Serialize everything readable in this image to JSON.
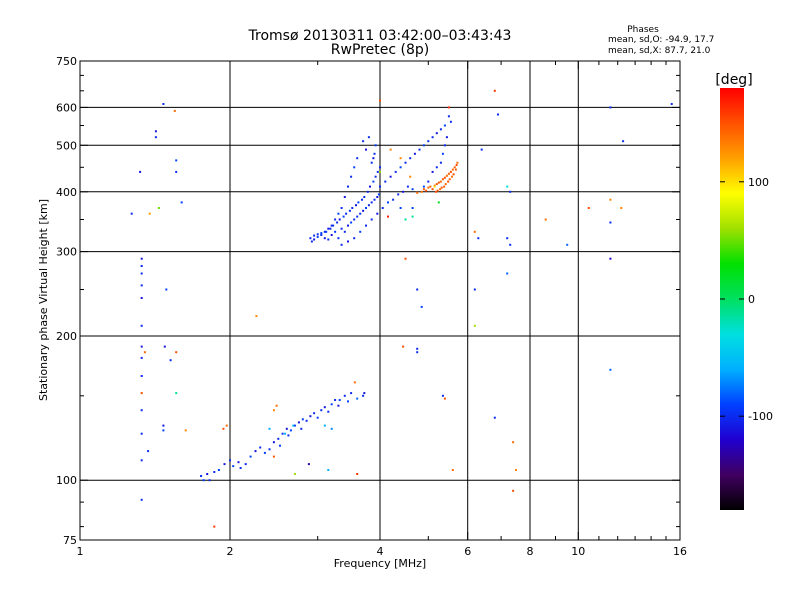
{
  "chart_data": {
    "type": "scatter",
    "title": "Tromsø 20130311 03:42:00–03:43:43",
    "subtitle": "RwPretec (8p)",
    "xlabel": "Frequency [MHz]",
    "ylabel": "Stationary phase Virtual Height [km]",
    "x_scale": "log",
    "y_scale": "log",
    "xlim": [
      1,
      16
    ],
    "ylim": [
      75,
      750
    ],
    "x_ticks": [
      1,
      2,
      4,
      6,
      8,
      10,
      16
    ],
    "x_gridlines": [
      2,
      4,
      6,
      8,
      10
    ],
    "y_ticks": [
      75,
      100,
      200,
      300,
      400,
      500,
      600,
      750
    ],
    "y_gridlines": [
      100,
      200,
      300,
      400,
      500,
      600
    ],
    "grid": true,
    "info": {
      "heading": "Phases",
      "line1": "mean, sd,O: -94.9, 17.7",
      "line2": "mean, sd,X:  87.7, 21.0"
    },
    "colorbar": {
      "label": "[deg]",
      "range": [
        -180,
        180
      ],
      "ticks": [
        -100,
        0,
        100
      ],
      "colormap": [
        "#000000",
        "#400060",
        "#2000d0",
        "#0040ff",
        "#00b0ff",
        "#00e0e0",
        "#00e060",
        "#00e000",
        "#a0e000",
        "#ffff00",
        "#ffa000",
        "#ff5000",
        "#ff0000"
      ]
    },
    "points": [
      [
        1.27,
        360,
        -100
      ],
      [
        1.38,
        360,
        120
      ],
      [
        1.44,
        370,
        50
      ],
      [
        1.6,
        380,
        -90
      ],
      [
        1.47,
        610,
        -100
      ],
      [
        1.55,
        590,
        140
      ],
      [
        1.42,
        535,
        -110
      ],
      [
        1.42,
        520,
        -100
      ],
      [
        1.56,
        465,
        -90
      ],
      [
        1.56,
        440,
        -100
      ],
      [
        1.32,
        440,
        -110
      ],
      [
        1.33,
        290,
        -110
      ],
      [
        1.33,
        280,
        -100
      ],
      [
        1.33,
        270,
        -100
      ],
      [
        1.33,
        255,
        -100
      ],
      [
        1.33,
        240,
        -110
      ],
      [
        1.33,
        210,
        -100
      ],
      [
        1.33,
        190,
        -110
      ],
      [
        1.33,
        180,
        -100
      ],
      [
        1.33,
        165,
        -100
      ],
      [
        1.33,
        152,
        150
      ],
      [
        1.33,
        140,
        -100
      ],
      [
        1.33,
        125,
        -100
      ],
      [
        1.33,
        110,
        -100
      ],
      [
        1.33,
        91,
        -100
      ],
      [
        1.35,
        185,
        140
      ],
      [
        1.49,
        250,
        -90
      ],
      [
        1.48,
        190,
        -110
      ],
      [
        1.52,
        178,
        -100
      ],
      [
        1.56,
        185,
        150
      ],
      [
        1.56,
        152,
        -10
      ],
      [
        1.63,
        127,
        130
      ],
      [
        1.47,
        130,
        -110
      ],
      [
        1.47,
        127,
        -90
      ],
      [
        1.37,
        115,
        -100
      ],
      [
        2.26,
        220,
        130
      ],
      [
        1.97,
        130,
        140
      ],
      [
        1.94,
        128,
        150
      ],
      [
        1.86,
        80,
        160
      ],
      [
        2.45,
        140,
        130
      ],
      [
        2.48,
        143,
        140
      ],
      [
        2.45,
        112,
        150
      ],
      [
        2.7,
        103,
        60
      ],
      [
        2.88,
        108,
        -130
      ],
      [
        3.15,
        105,
        -60
      ],
      [
        3.56,
        160,
        140
      ],
      [
        3.6,
        103,
        160
      ],
      [
        3.32,
        147,
        -90
      ],
      [
        3.6,
        148,
        -80
      ],
      [
        1.75,
        102,
        -100
      ],
      [
        1.77,
        100,
        -90
      ],
      [
        1.8,
        103,
        -110
      ],
      [
        1.82,
        100,
        -100
      ],
      [
        1.86,
        104,
        -100
      ],
      [
        1.9,
        105,
        -90
      ],
      [
        1.95,
        108,
        -110
      ],
      [
        2.0,
        110,
        -100
      ],
      [
        2.03,
        107,
        -90
      ],
      [
        2.08,
        109,
        -110
      ],
      [
        2.1,
        106,
        -100
      ],
      [
        2.15,
        108,
        -100
      ],
      [
        2.2,
        112,
        -90
      ],
      [
        2.25,
        115,
        -110
      ],
      [
        2.3,
        117,
        -100
      ],
      [
        2.35,
        114,
        -90
      ],
      [
        2.4,
        116,
        -100
      ],
      [
        2.45,
        120,
        -110
      ],
      [
        2.5,
        122,
        -100
      ],
      [
        2.52,
        118,
        -90
      ],
      [
        2.55,
        125,
        -100
      ],
      [
        2.6,
        128,
        -110
      ],
      [
        2.62,
        124,
        -100
      ],
      [
        2.65,
        127,
        -90
      ],
      [
        2.7,
        130,
        -100
      ],
      [
        2.75,
        132,
        -110
      ],
      [
        2.78,
        128,
        -100
      ],
      [
        2.8,
        134,
        -90
      ],
      [
        2.85,
        133,
        -100
      ],
      [
        2.9,
        136,
        -110
      ],
      [
        2.95,
        138,
        -100
      ],
      [
        3.0,
        135,
        -90
      ],
      [
        3.05,
        140,
        -100
      ],
      [
        3.1,
        142,
        -110
      ],
      [
        3.15,
        139,
        -100
      ],
      [
        3.2,
        144,
        -90
      ],
      [
        3.25,
        147,
        -100
      ],
      [
        3.3,
        143,
        -110
      ],
      [
        3.4,
        150,
        -100
      ],
      [
        3.45,
        146,
        -90
      ],
      [
        3.5,
        152,
        -100
      ],
      [
        3.7,
        150,
        -100
      ],
      [
        3.72,
        152,
        -110
      ],
      [
        2.58,
        125,
        -60
      ],
      [
        2.68,
        130,
        -60
      ],
      [
        3.1,
        130,
        -60
      ],
      [
        3.2,
        128,
        -70
      ],
      [
        2.4,
        128,
        -60
      ],
      [
        2.9,
        320,
        -100
      ],
      [
        2.95,
        318,
        -110
      ],
      [
        3.0,
        322,
        -90
      ],
      [
        2.92,
        315,
        -100
      ],
      [
        3.05,
        325,
        -100
      ],
      [
        3.1,
        320,
        -110
      ],
      [
        3.12,
        330,
        -90
      ],
      [
        3.15,
        318,
        -100
      ],
      [
        3.18,
        335,
        -100
      ],
      [
        3.2,
        325,
        -110
      ],
      [
        3.22,
        340,
        -100
      ],
      [
        3.25,
        330,
        -90
      ],
      [
        3.28,
        345,
        -100
      ],
      [
        3.3,
        320,
        -100
      ],
      [
        3.32,
        350,
        -110
      ],
      [
        3.35,
        335,
        -100
      ],
      [
        3.38,
        355,
        -90
      ],
      [
        3.4,
        330,
        -100
      ],
      [
        3.42,
        360,
        -100
      ],
      [
        3.45,
        340,
        -110
      ],
      [
        3.48,
        365,
        -100
      ],
      [
        3.5,
        345,
        -90
      ],
      [
        3.52,
        370,
        -100
      ],
      [
        3.55,
        350,
        -100
      ],
      [
        3.58,
        375,
        -110
      ],
      [
        3.6,
        355,
        -100
      ],
      [
        3.62,
        380,
        -90
      ],
      [
        3.65,
        360,
        -100
      ],
      [
        3.68,
        385,
        -100
      ],
      [
        3.7,
        365,
        -110
      ],
      [
        3.72,
        390,
        -100
      ],
      [
        3.75,
        370,
        -90
      ],
      [
        3.78,
        400,
        -100
      ],
      [
        3.8,
        375,
        -100
      ],
      [
        3.82,
        410,
        -110
      ],
      [
        3.85,
        380,
        -100
      ],
      [
        3.88,
        420,
        -90
      ],
      [
        3.9,
        385,
        -100
      ],
      [
        3.92,
        430,
        -100
      ],
      [
        3.95,
        390,
        -110
      ],
      [
        3.96,
        440,
        -100
      ],
      [
        3.98,
        395,
        -90
      ],
      [
        4.0,
        450,
        -100
      ],
      [
        3.85,
        460,
        -100
      ],
      [
        3.88,
        470,
        -110
      ],
      [
        3.9,
        480,
        -100
      ],
      [
        3.92,
        500,
        -90
      ],
      [
        3.8,
        520,
        -100
      ],
      [
        3.7,
        510,
        -100
      ],
      [
        3.75,
        490,
        -110
      ],
      [
        3.6,
        470,
        -100
      ],
      [
        3.55,
        450,
        -90
      ],
      [
        3.5,
        430,
        -100
      ],
      [
        3.45,
        410,
        -100
      ],
      [
        3.4,
        390,
        -110
      ],
      [
        3.35,
        370,
        -100
      ],
      [
        3.3,
        360,
        -90
      ],
      [
        3.25,
        350,
        -100
      ],
      [
        3.2,
        340,
        -100
      ],
      [
        3.15,
        335,
        -110
      ],
      [
        3.1,
        330,
        -100
      ],
      [
        3.05,
        328,
        -90
      ],
      [
        3.0,
        326,
        -100
      ],
      [
        2.95,
        324,
        -100
      ],
      [
        3.35,
        310,
        -100
      ],
      [
        3.45,
        315,
        -110
      ],
      [
        3.55,
        320,
        -100
      ],
      [
        3.65,
        330,
        -90
      ],
      [
        3.75,
        340,
        -100
      ],
      [
        3.85,
        350,
        -100
      ],
      [
        3.95,
        360,
        -110
      ],
      [
        4.05,
        370,
        -100
      ],
      [
        4.15,
        380,
        -90
      ],
      [
        4.25,
        385,
        -100
      ],
      [
        4.35,
        395,
        -100
      ],
      [
        4.45,
        400,
        -110
      ],
      [
        4.55,
        410,
        -100
      ],
      [
        4.65,
        405,
        -90
      ],
      [
        4.0,
        410,
        -100
      ],
      [
        4.1,
        420,
        -100
      ],
      [
        4.2,
        430,
        -110
      ],
      [
        4.3,
        440,
        -100
      ],
      [
        4.4,
        450,
        -90
      ],
      [
        4.5,
        460,
        -100
      ],
      [
        4.6,
        470,
        -100
      ],
      [
        4.7,
        480,
        -110
      ],
      [
        4.8,
        490,
        -100
      ],
      [
        4.9,
        500,
        -90
      ],
      [
        5.0,
        510,
        -100
      ],
      [
        5.1,
        520,
        -100
      ],
      [
        5.2,
        530,
        -110
      ],
      [
        5.3,
        540,
        -100
      ],
      [
        5.4,
        550,
        -90
      ],
      [
        5.5,
        575,
        -100
      ],
      [
        5.55,
        560,
        -100
      ],
      [
        5.45,
        520,
        -110
      ],
      [
        5.4,
        500,
        -100
      ],
      [
        5.35,
        480,
        -90
      ],
      [
        5.3,
        460,
        -100
      ],
      [
        5.2,
        450,
        -100
      ],
      [
        5.1,
        440,
        -110
      ],
      [
        5.0,
        420,
        -100
      ],
      [
        4.9,
        410,
        -90
      ],
      [
        4.85,
        400,
        140
      ],
      [
        4.9,
        405,
        145
      ],
      [
        4.95,
        402,
        150
      ],
      [
        5.0,
        408,
        140
      ],
      [
        5.05,
        410,
        145
      ],
      [
        5.1,
        405,
        150
      ],
      [
        5.15,
        412,
        140
      ],
      [
        5.2,
        415,
        145
      ],
      [
        5.25,
        418,
        150
      ],
      [
        5.3,
        420,
        140
      ],
      [
        5.35,
        425,
        145
      ],
      [
        5.4,
        428,
        150
      ],
      [
        5.45,
        432,
        140
      ],
      [
        5.5,
        436,
        145
      ],
      [
        5.55,
        440,
        150
      ],
      [
        5.6,
        445,
        140
      ],
      [
        5.65,
        450,
        145
      ],
      [
        5.7,
        455,
        150
      ],
      [
        5.72,
        460,
        140
      ],
      [
        5.68,
        445,
        145
      ],
      [
        5.62,
        435,
        150
      ],
      [
        5.58,
        430,
        140
      ],
      [
        5.52,
        425,
        145
      ],
      [
        5.48,
        420,
        150
      ],
      [
        5.42,
        415,
        140
      ],
      [
        5.38,
        410,
        145
      ],
      [
        5.32,
        408,
        150
      ],
      [
        5.28,
        405,
        140
      ],
      [
        5.22,
        402,
        145
      ],
      [
        5.18,
        400,
        150
      ],
      [
        4.75,
        398,
        140
      ],
      [
        4.2,
        490,
        130
      ],
      [
        4.4,
        470,
        130
      ],
      [
        4.6,
        430,
        130
      ],
      [
        4.5,
        350,
        -10
      ],
      [
        4.15,
        355,
        170
      ],
      [
        4.65,
        355,
        -10
      ],
      [
        5.25,
        380,
        20
      ],
      [
        5.15,
        410,
        100
      ],
      [
        4.0,
        440,
        60
      ],
      [
        4.0,
        620,
        150
      ],
      [
        4.4,
        370,
        -90
      ],
      [
        4.65,
        370,
        -90
      ],
      [
        4.5,
        290,
        150
      ],
      [
        4.75,
        250,
        -100
      ],
      [
        4.85,
        230,
        -90
      ],
      [
        4.45,
        190,
        150
      ],
      [
        4.75,
        188,
        -100
      ],
      [
        4.75,
        185,
        -100
      ],
      [
        5.35,
        150,
        -100
      ],
      [
        5.4,
        148,
        150
      ],
      [
        5.6,
        105,
        140
      ],
      [
        5.5,
        600,
        160
      ],
      [
        6.2,
        330,
        140
      ],
      [
        6.3,
        320,
        -100
      ],
      [
        6.2,
        250,
        -100
      ],
      [
        6.2,
        210,
        60
      ],
      [
        6.4,
        490,
        -100
      ],
      [
        6.8,
        650,
        160
      ],
      [
        6.9,
        580,
        -100
      ],
      [
        6.8,
        135,
        -100
      ],
      [
        7.2,
        410,
        -30
      ],
      [
        7.3,
        400,
        -100
      ],
      [
        7.2,
        320,
        -100
      ],
      [
        7.3,
        310,
        -100
      ],
      [
        7.2,
        270,
        -80
      ],
      [
        7.4,
        120,
        140
      ],
      [
        7.5,
        105,
        130
      ],
      [
        7.4,
        95,
        150
      ],
      [
        8.6,
        350,
        140
      ],
      [
        9.5,
        310,
        -80
      ],
      [
        10.5,
        370,
        150
      ],
      [
        11.6,
        600,
        -100
      ],
      [
        11.6,
        385,
        130
      ],
      [
        11.6,
        345,
        -100
      ],
      [
        11.6,
        290,
        -120
      ],
      [
        11.6,
        170,
        -80
      ],
      [
        12.2,
        370,
        130
      ],
      [
        12.3,
        510,
        -100
      ],
      [
        15.4,
        610,
        -100
      ]
    ]
  }
}
